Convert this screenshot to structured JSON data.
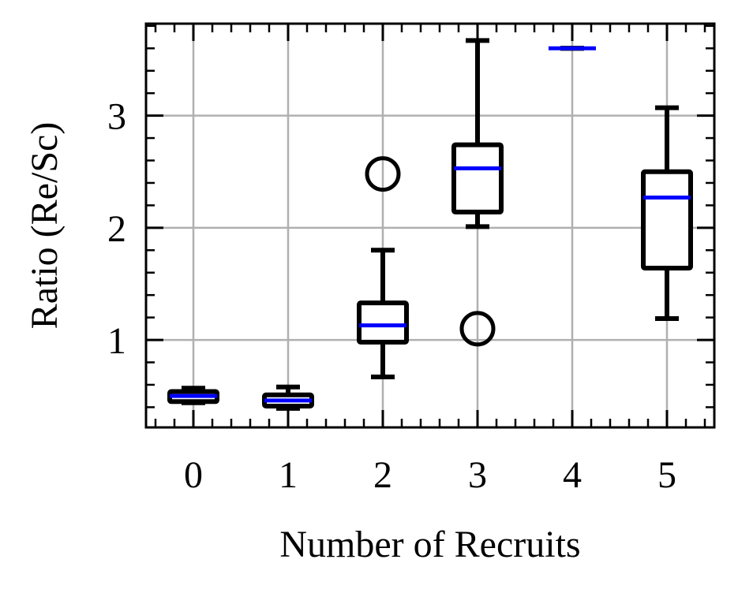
{
  "chart_data": {
    "type": "box",
    "xlabel": "Number of Recruits",
    "ylabel": "Ratio (Re/Sc)",
    "categories": [
      "0",
      "1",
      "2",
      "3",
      "4",
      "5"
    ],
    "xlim": [
      -0.5,
      5.5
    ],
    "ylim": [
      0.22,
      3.82
    ],
    "yticks": [
      1,
      2,
      3
    ],
    "grid": true,
    "colors": {
      "box": "#000000",
      "median": "#0000ff",
      "grid": "#b0b0b0"
    },
    "boxes": [
      {
        "category": "0",
        "whisker_low": 0.44,
        "q1": 0.45,
        "median": 0.5,
        "q3": 0.54,
        "whisker_high": 0.57,
        "outliers": []
      },
      {
        "category": "1",
        "whisker_low": 0.39,
        "q1": 0.41,
        "median": 0.46,
        "q3": 0.51,
        "whisker_high": 0.58,
        "outliers": []
      },
      {
        "category": "2",
        "whisker_low": 0.67,
        "q1": 0.98,
        "median": 1.13,
        "q3": 1.33,
        "whisker_high": 1.8,
        "outliers": [
          2.48
        ]
      },
      {
        "category": "3",
        "whisker_low": 2.01,
        "q1": 2.14,
        "median": 2.53,
        "q3": 2.74,
        "whisker_high": 3.67,
        "outliers": [
          1.1
        ]
      },
      {
        "category": "4",
        "whisker_low": 3.6,
        "q1": 3.6,
        "median": 3.6,
        "q3": 3.6,
        "whisker_high": 3.6,
        "outliers": []
      },
      {
        "category": "5",
        "whisker_low": 1.19,
        "q1": 1.64,
        "median": 2.27,
        "q3": 2.5,
        "whisker_high": 3.07,
        "outliers": []
      }
    ]
  }
}
